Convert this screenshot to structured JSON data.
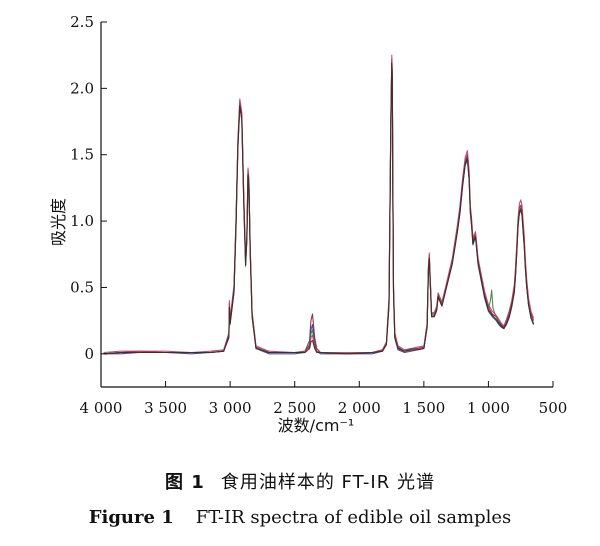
{
  "chart_data": {
    "type": "line",
    "ylabel": "吸光度",
    "xlabel": "波数/cm⁻¹",
    "xlim": [
      4000,
      500
    ],
    "ylim": [
      -0.25,
      2.5
    ],
    "x_reversed": true,
    "x_ticks": [
      4000,
      3500,
      3000,
      2500,
      2000,
      1500,
      1000,
      500
    ],
    "x_tick_labels": [
      "4 000",
      "3 500",
      "3 000",
      "2 500",
      "2 000",
      "1 500",
      "1 000",
      "500"
    ],
    "y_ticks": [
      0,
      0.5,
      1.0,
      1.5,
      2.0,
      2.5
    ],
    "y_tick_labels": [
      "0",
      "0.5",
      "1.0",
      "1.5",
      "2.0",
      "2.5"
    ],
    "grid": false,
    "legend": "none",
    "series": [
      {
        "color": "#8b1a3a",
        "x": [
          3980,
          3850,
          3700,
          3500,
          3300,
          3150,
          3050,
          3010,
          3006,
          3000,
          2970,
          2955,
          2940,
          2925,
          2910,
          2895,
          2880,
          2870,
          2862,
          2855,
          2845,
          2830,
          2800,
          2700,
          2500,
          2420,
          2385,
          2375,
          2362,
          2345,
          2330,
          2300,
          2100,
          1900,
          1820,
          1790,
          1770,
          1755,
          1748,
          1744,
          1740,
          1735,
          1725,
          1700,
          1650,
          1600,
          1550,
          1500,
          1475,
          1465,
          1458,
          1450,
          1440,
          1420,
          1400,
          1390,
          1377,
          1360,
          1330,
          1280,
          1240,
          1220,
          1200,
          1180,
          1163,
          1150,
          1140,
          1130,
          1120,
          1110,
          1100,
          1080,
          1050,
          1030,
          1000,
          970,
          940,
          920,
          900,
          880,
          860,
          840,
          820,
          800,
          790,
          780,
          770,
          760,
          750,
          740,
          730,
          722,
          715,
          705,
          690,
          670,
          650
        ],
        "y": [
          0.0,
          0.01,
          0.02,
          0.01,
          0.01,
          0.01,
          0.02,
          0.15,
          0.38,
          0.25,
          0.5,
          1.0,
          1.6,
          1.9,
          1.8,
          1.2,
          0.7,
          0.9,
          1.38,
          1.3,
          0.8,
          0.3,
          0.05,
          0.01,
          0.01,
          0.02,
          0.1,
          0.25,
          0.3,
          0.12,
          0.04,
          0.01,
          0.0,
          0.01,
          0.03,
          0.08,
          0.4,
          1.8,
          2.22,
          2.1,
          1.2,
          0.5,
          0.15,
          0.05,
          0.02,
          0.04,
          0.04,
          0.05,
          0.22,
          0.65,
          0.74,
          0.55,
          0.3,
          0.3,
          0.35,
          0.45,
          0.42,
          0.38,
          0.5,
          0.7,
          0.95,
          1.1,
          1.3,
          1.45,
          1.5,
          1.35,
          1.1,
          1.0,
          0.85,
          0.88,
          0.9,
          0.7,
          0.55,
          0.45,
          0.35,
          0.3,
          0.28,
          0.25,
          0.22,
          0.2,
          0.25,
          0.3,
          0.38,
          0.5,
          0.62,
          0.8,
          1.0,
          1.1,
          1.12,
          1.08,
          0.95,
          0.85,
          0.7,
          0.55,
          0.4,
          0.3,
          0.25
        ]
      },
      {
        "color": "#2a3d8f",
        "x": [
          3980,
          3850,
          3700,
          3500,
          3300,
          3150,
          3050,
          3010,
          3006,
          3000,
          2970,
          2955,
          2940,
          2925,
          2910,
          2895,
          2880,
          2870,
          2862,
          2855,
          2845,
          2830,
          2800,
          2700,
          2500,
          2420,
          2385,
          2375,
          2362,
          2345,
          2330,
          2300,
          2100,
          1900,
          1820,
          1790,
          1770,
          1755,
          1748,
          1744,
          1740,
          1735,
          1725,
          1700,
          1650,
          1600,
          1550,
          1500,
          1475,
          1465,
          1458,
          1450,
          1440,
          1420,
          1400,
          1390,
          1377,
          1360,
          1330,
          1280,
          1240,
          1220,
          1200,
          1180,
          1163,
          1150,
          1140,
          1130,
          1120,
          1110,
          1100,
          1080,
          1050,
          1030,
          1000,
          970,
          940,
          920,
          900,
          880,
          860,
          840,
          820,
          800,
          790,
          780,
          770,
          760,
          750,
          740,
          730,
          722,
          715,
          705,
          690,
          670,
          650
        ],
        "y": [
          0.0,
          0.0,
          0.01,
          0.01,
          0.0,
          0.01,
          0.02,
          0.12,
          0.34,
          0.22,
          0.46,
          0.95,
          1.55,
          1.86,
          1.76,
          1.15,
          0.66,
          0.86,
          1.34,
          1.27,
          0.76,
          0.28,
          0.04,
          0.0,
          0.0,
          0.01,
          0.07,
          0.18,
          0.22,
          0.08,
          0.02,
          0.0,
          0.0,
          0.0,
          0.02,
          0.07,
          0.36,
          1.75,
          2.18,
          2.06,
          1.15,
          0.45,
          0.12,
          0.03,
          0.01,
          0.02,
          0.03,
          0.04,
          0.2,
          0.62,
          0.72,
          0.52,
          0.28,
          0.28,
          0.33,
          0.43,
          0.4,
          0.36,
          0.48,
          0.68,
          0.92,
          1.06,
          1.26,
          1.42,
          1.46,
          1.31,
          1.06,
          0.96,
          0.82,
          0.85,
          0.88,
          0.67,
          0.52,
          0.42,
          0.32,
          0.28,
          0.25,
          0.22,
          0.2,
          0.19,
          0.22,
          0.27,
          0.35,
          0.46,
          0.58,
          0.76,
          0.96,
          1.06,
          1.08,
          1.04,
          0.9,
          0.8,
          0.66,
          0.52,
          0.37,
          0.27,
          0.22
        ]
      },
      {
        "color": "#3f7d3a",
        "x": [
          3980,
          3850,
          3700,
          3500,
          3300,
          3150,
          3050,
          3010,
          3006,
          3000,
          2970,
          2955,
          2940,
          2925,
          2910,
          2895,
          2880,
          2870,
          2862,
          2855,
          2845,
          2830,
          2800,
          2700,
          2500,
          2420,
          2385,
          2375,
          2362,
          2345,
          2330,
          2300,
          2100,
          1900,
          1820,
          1790,
          1770,
          1755,
          1748,
          1744,
          1740,
          1735,
          1725,
          1700,
          1650,
          1600,
          1550,
          1500,
          1475,
          1465,
          1458,
          1450,
          1440,
          1420,
          1400,
          1390,
          1377,
          1360,
          1330,
          1280,
          1240,
          1220,
          1200,
          1180,
          1163,
          1150,
          1140,
          1130,
          1120,
          1110,
          1100,
          1080,
          1050,
          1030,
          1000,
          985,
          975,
          965,
          950,
          920,
          900,
          880,
          860,
          840,
          820,
          800,
          790,
          780,
          770,
          760,
          750,
          740,
          730,
          722,
          715,
          705,
          690,
          670,
          650
        ],
        "y": [
          0.0,
          0.01,
          0.01,
          0.01,
          0.01,
          0.01,
          0.02,
          0.14,
          0.36,
          0.24,
          0.48,
          0.98,
          1.58,
          1.88,
          1.78,
          1.18,
          0.68,
          0.88,
          1.36,
          1.28,
          0.78,
          0.29,
          0.05,
          0.01,
          0.01,
          0.01,
          0.06,
          0.15,
          0.18,
          0.06,
          0.02,
          0.01,
          0.0,
          0.01,
          0.02,
          0.07,
          0.38,
          1.78,
          2.2,
          2.08,
          1.18,
          0.48,
          0.13,
          0.04,
          0.02,
          0.03,
          0.03,
          0.04,
          0.21,
          0.63,
          0.73,
          0.53,
          0.29,
          0.29,
          0.34,
          0.44,
          0.41,
          0.37,
          0.49,
          0.69,
          0.93,
          1.08,
          1.28,
          1.44,
          1.48,
          1.33,
          1.08,
          0.98,
          0.84,
          0.86,
          0.89,
          0.69,
          0.54,
          0.44,
          0.34,
          0.4,
          0.48,
          0.35,
          0.3,
          0.24,
          0.21,
          0.19,
          0.23,
          0.28,
          0.36,
          0.48,
          0.6,
          0.78,
          0.98,
          1.08,
          1.1,
          1.06,
          0.92,
          0.82,
          0.68,
          0.53,
          0.38,
          0.28,
          0.23
        ]
      },
      {
        "color": "#c0396a",
        "x": [
          3980,
          3850,
          3700,
          3500,
          3300,
          3150,
          3050,
          3010,
          3006,
          3000,
          2970,
          2955,
          2940,
          2925,
          2910,
          2895,
          2880,
          2870,
          2862,
          2855,
          2845,
          2830,
          2800,
          2700,
          2500,
          2420,
          2385,
          2375,
          2362,
          2345,
          2330,
          2300,
          2100,
          1900,
          1820,
          1790,
          1770,
          1755,
          1748,
          1744,
          1740,
          1735,
          1725,
          1700,
          1650,
          1600,
          1550,
          1500,
          1475,
          1465,
          1458,
          1450,
          1440,
          1420,
          1400,
          1390,
          1377,
          1360,
          1330,
          1280,
          1240,
          1220,
          1200,
          1180,
          1163,
          1150,
          1140,
          1130,
          1120,
          1110,
          1100,
          1080,
          1050,
          1030,
          1000,
          970,
          940,
          920,
          900,
          880,
          860,
          840,
          820,
          800,
          790,
          780,
          770,
          760,
          750,
          740,
          730,
          722,
          715,
          705,
          690,
          670,
          650
        ],
        "y": [
          0.01,
          0.02,
          0.02,
          0.02,
          0.01,
          0.02,
          0.03,
          0.16,
          0.4,
          0.26,
          0.52,
          1.02,
          1.62,
          1.92,
          1.82,
          1.22,
          0.72,
          0.92,
          1.4,
          1.32,
          0.82,
          0.32,
          0.06,
          0.02,
          0.01,
          0.02,
          0.05,
          0.12,
          0.14,
          0.05,
          0.02,
          0.01,
          0.01,
          0.01,
          0.03,
          0.09,
          0.42,
          1.82,
          2.25,
          2.12,
          1.22,
          0.52,
          0.16,
          0.06,
          0.03,
          0.04,
          0.05,
          0.06,
          0.23,
          0.66,
          0.76,
          0.56,
          0.31,
          0.31,
          0.36,
          0.46,
          0.43,
          0.39,
          0.51,
          0.72,
          0.97,
          1.12,
          1.32,
          1.48,
          1.53,
          1.38,
          1.12,
          1.02,
          0.87,
          0.9,
          0.92,
          0.72,
          0.57,
          0.47,
          0.37,
          0.32,
          0.29,
          0.26,
          0.23,
          0.21,
          0.26,
          0.32,
          0.4,
          0.52,
          0.65,
          0.83,
          1.03,
          1.13,
          1.16,
          1.12,
          0.98,
          0.88,
          0.73,
          0.58,
          0.42,
          0.32,
          0.27
        ]
      },
      {
        "color": "#3d2a1f",
        "x": [
          3980,
          3850,
          3700,
          3500,
          3300,
          3150,
          3050,
          3010,
          3006,
          3000,
          2970,
          2955,
          2940,
          2925,
          2910,
          2895,
          2880,
          2870,
          2862,
          2855,
          2845,
          2830,
          2800,
          2700,
          2500,
          2420,
          2385,
          2375,
          2362,
          2345,
          2330,
          2300,
          2100,
          1900,
          1820,
          1790,
          1770,
          1755,
          1748,
          1744,
          1740,
          1735,
          1725,
          1700,
          1650,
          1600,
          1550,
          1500,
          1475,
          1465,
          1458,
          1450,
          1440,
          1420,
          1400,
          1390,
          1377,
          1360,
          1330,
          1280,
          1240,
          1220,
          1200,
          1180,
          1163,
          1150,
          1140,
          1130,
          1120,
          1110,
          1100,
          1080,
          1050,
          1030,
          1000,
          970,
          940,
          920,
          900,
          880,
          860,
          840,
          820,
          800,
          790,
          780,
          770,
          760,
          750,
          740,
          730,
          722,
          715,
          705,
          690,
          670,
          650
        ],
        "y": [
          0.0,
          0.01,
          0.01,
          0.01,
          0.01,
          0.01,
          0.02,
          0.13,
          0.35,
          0.23,
          0.47,
          0.96,
          1.56,
          1.87,
          1.77,
          1.16,
          0.67,
          0.87,
          1.35,
          1.27,
          0.77,
          0.28,
          0.04,
          0.01,
          0.01,
          0.01,
          0.04,
          0.09,
          0.1,
          0.04,
          0.01,
          0.01,
          0.0,
          0.01,
          0.02,
          0.07,
          0.37,
          1.76,
          2.19,
          2.07,
          1.16,
          0.46,
          0.12,
          0.04,
          0.02,
          0.03,
          0.03,
          0.04,
          0.2,
          0.62,
          0.72,
          0.52,
          0.28,
          0.28,
          0.33,
          0.43,
          0.4,
          0.36,
          0.48,
          0.68,
          0.92,
          1.07,
          1.27,
          1.43,
          1.47,
          1.32,
          1.07,
          0.97,
          0.83,
          0.86,
          0.88,
          0.68,
          0.53,
          0.43,
          0.33,
          0.29,
          0.26,
          0.23,
          0.21,
          0.19,
          0.23,
          0.28,
          0.36,
          0.47,
          0.59,
          0.77,
          0.97,
          1.07,
          1.09,
          1.05,
          0.91,
          0.81,
          0.67,
          0.52,
          0.37,
          0.27,
          0.22
        ]
      }
    ]
  },
  "caption": {
    "cn_label": "图 1",
    "cn_text": "食用油样本的 FT-IR 光谱",
    "en_label": "Figure 1",
    "en_text": "FT-IR spectra of edible oil samples"
  }
}
